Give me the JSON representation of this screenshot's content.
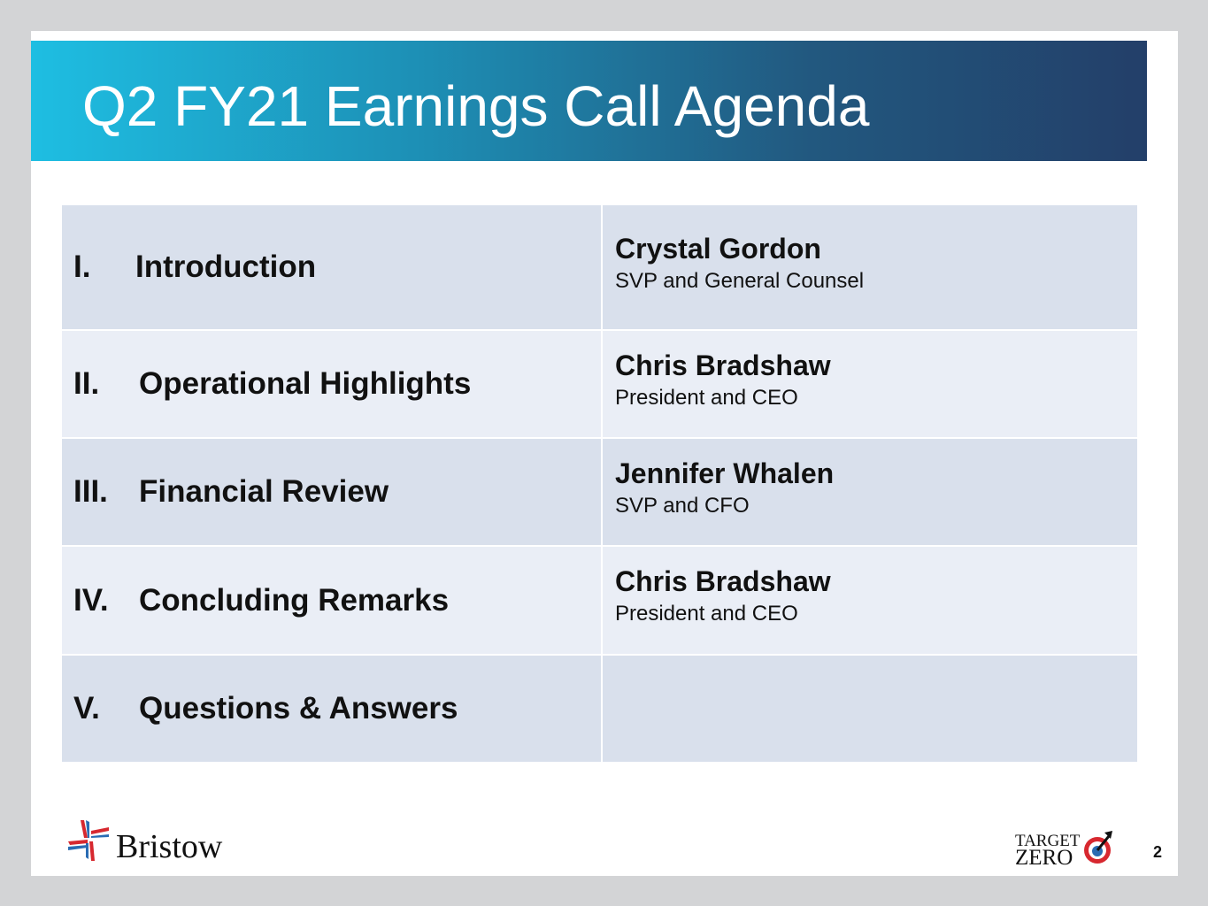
{
  "title": "Q2 FY21 Earnings Call Agenda",
  "agenda": [
    {
      "num": "I.",
      "topic": "Introduction",
      "speaker": "Crystal Gordon",
      "role": "SVP and General Counsel"
    },
    {
      "num": "II.",
      "topic": "Operational Highlights",
      "speaker": "Chris Bradshaw",
      "role": "President and CEO"
    },
    {
      "num": "III.",
      "topic": "Financial Review",
      "speaker": "Jennifer Whalen",
      "role": "SVP and CFO"
    },
    {
      "num": "IV.",
      "topic": "Concluding Remarks",
      "speaker": "Chris Bradshaw",
      "role": "President and CEO"
    },
    {
      "num": "V.",
      "topic": "Questions & Answers",
      "speaker": "",
      "role": ""
    }
  ],
  "footer": {
    "logo": "Bristow",
    "badge_line1": "TARGET",
    "badge_line2": "ZERO",
    "page_number": "2"
  },
  "colors": {
    "header_start": "#1ebee2",
    "header_end": "#233f69",
    "row_dark": "#d9e0ec",
    "row_light": "#eaeef6",
    "brand_red": "#d7282f",
    "brand_blue": "#2a6cb3"
  }
}
